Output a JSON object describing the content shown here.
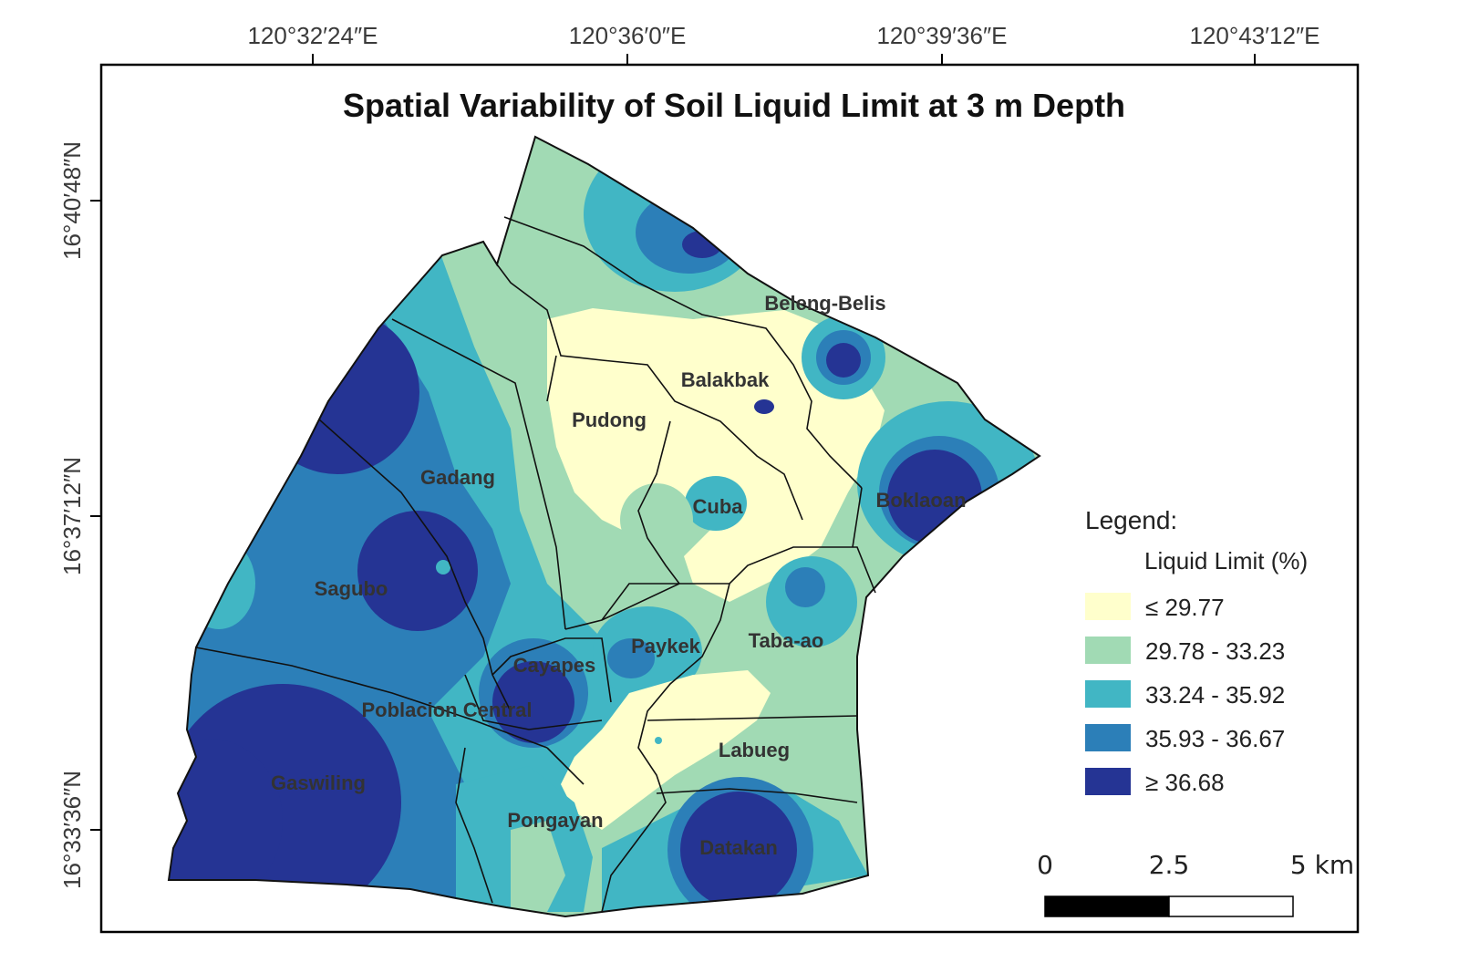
{
  "map": {
    "title": "Spatial Variability of Soil Liquid Limit at 3 m Depth",
    "longitude_ticks": [
      "120°32′24″E",
      "120°36′0″E",
      "120°39′36″E",
      "120°43′12″E"
    ],
    "latitude_ticks": [
      "16°40′48″N",
      "16°37′12″N",
      "16°33′36″N"
    ],
    "places": [
      "Beleng-Belis",
      "Balakbak",
      "Pudong",
      "Cuba",
      "Boklaoan",
      "Gadang",
      "Sagubo",
      "Paykek",
      "Taba-ao",
      "Cayapes",
      "Poblacion Central",
      "Labueg",
      "Gaswiling",
      "Pongayan",
      "Datakan"
    ]
  },
  "legend": {
    "heading": "Legend:",
    "subheading": "Liquid Limit (%)",
    "classes": [
      {
        "label": "≤ 29.77",
        "color": "#ffffcc"
      },
      {
        "label": "29.78 - 33.23",
        "color": "#a1dab4"
      },
      {
        "label": "33.24 - 35.92",
        "color": "#41b6c4"
      },
      {
        "label": "35.93 - 36.67",
        "color": "#2c7fb8"
      },
      {
        "label": "≥ 36.68",
        "color": "#253494"
      }
    ]
  },
  "scale_bar": {
    "labels": [
      "0",
      "2.5",
      "5 km"
    ]
  }
}
